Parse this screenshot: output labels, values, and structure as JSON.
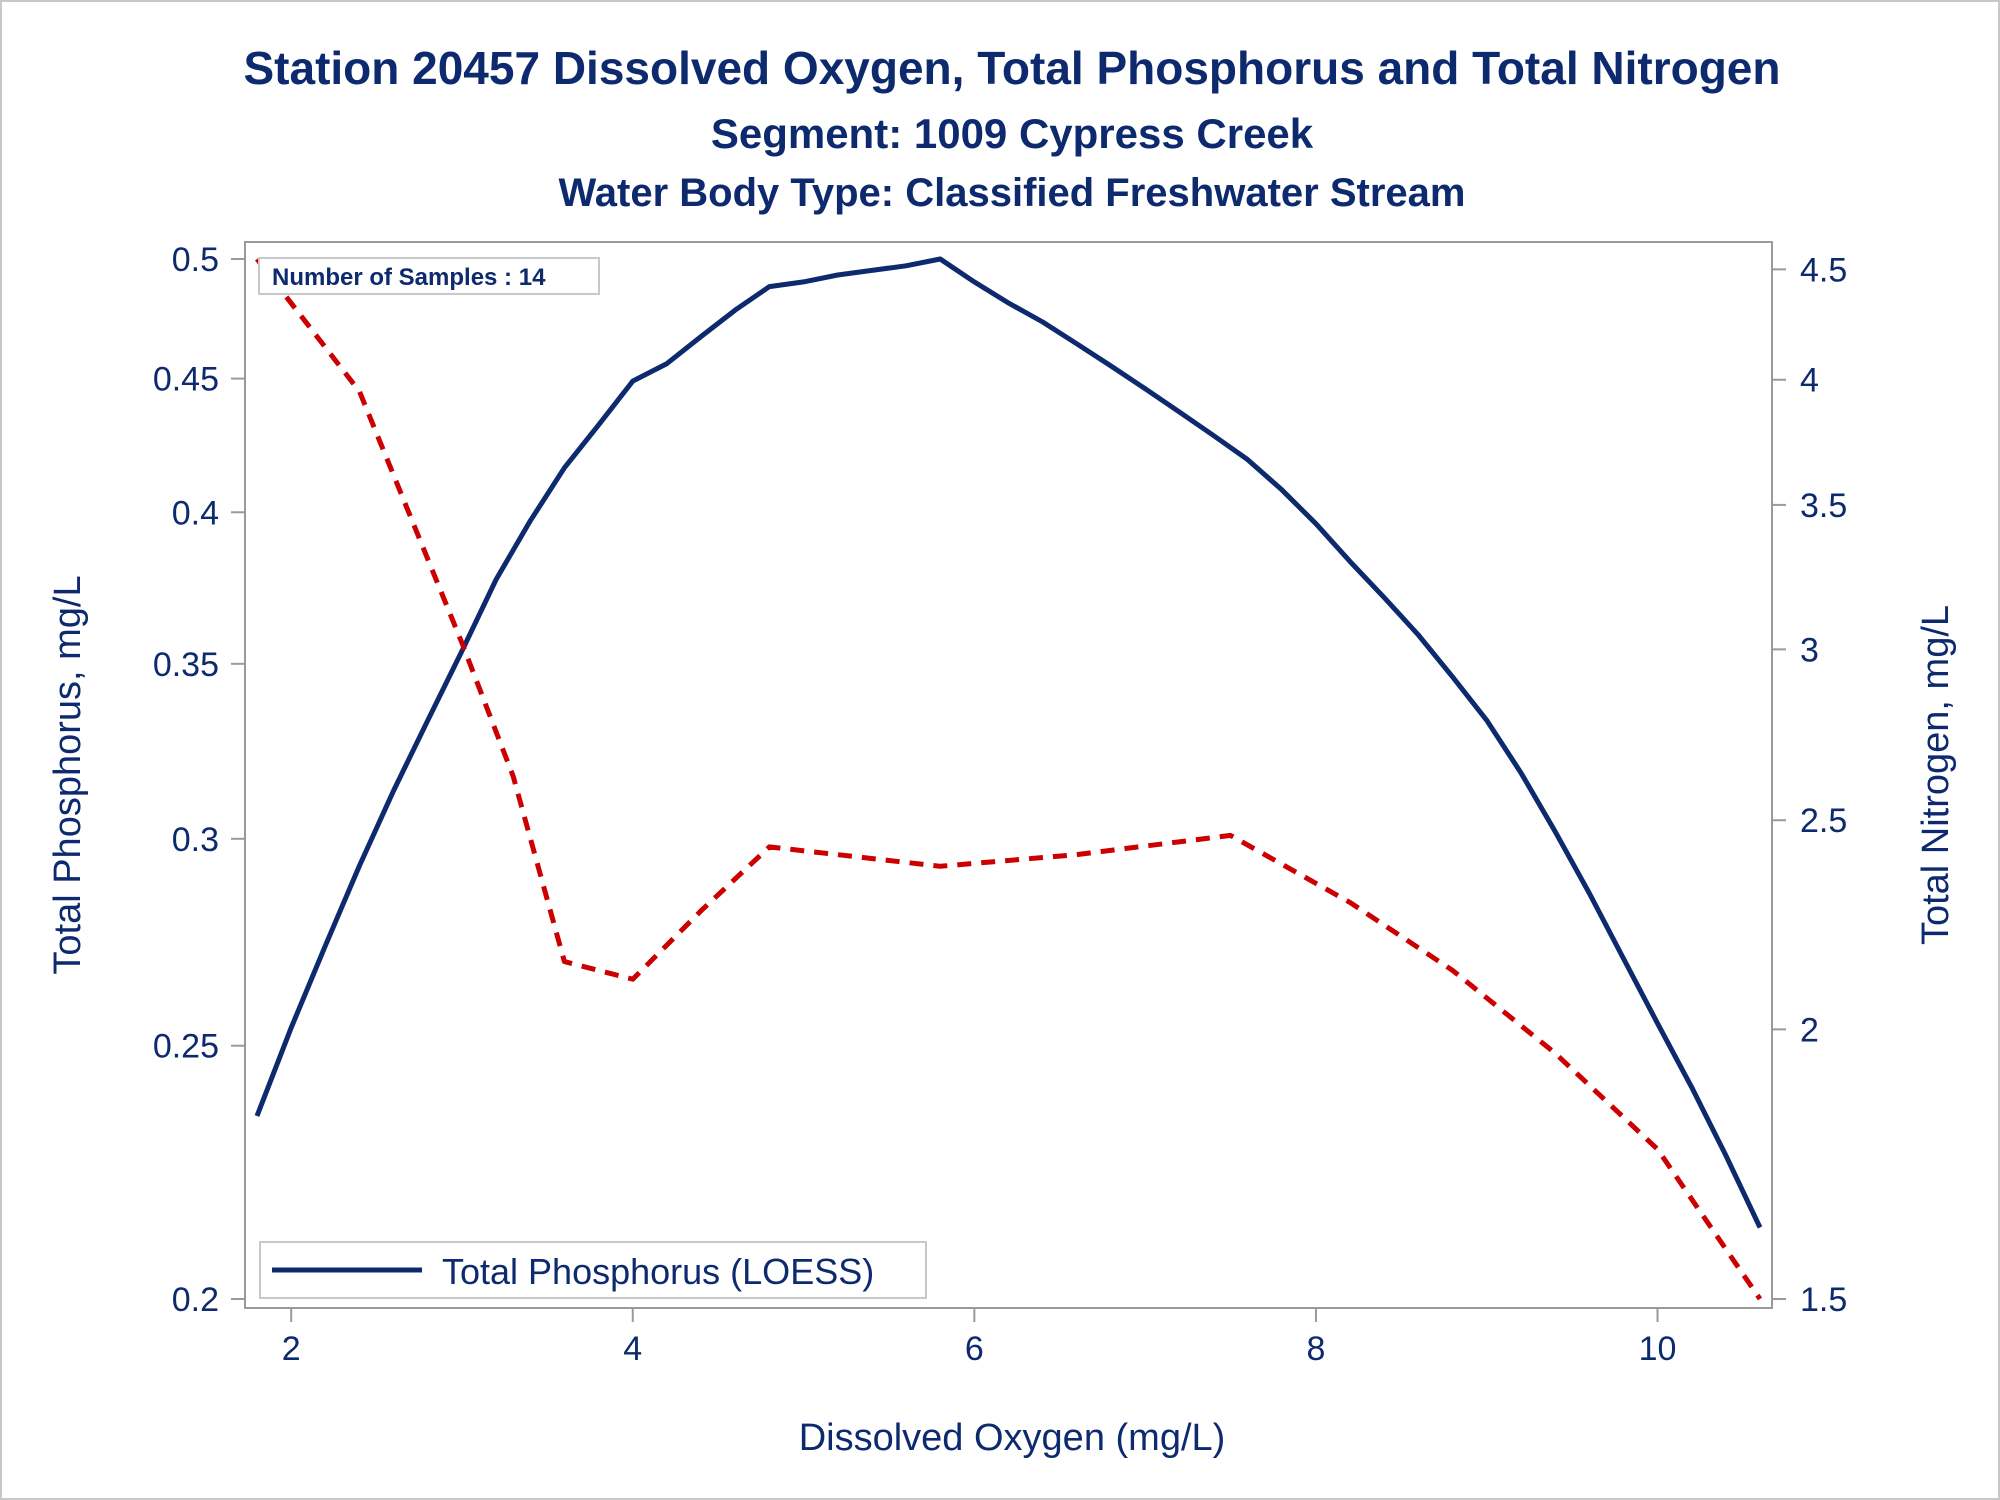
{
  "titles": {
    "line1": "Station 20457  Dissolved Oxygen, Total Phosphorus and Total Nitrogen",
    "line2": "Segment: 1009  Cypress Creek",
    "line3": "Water Body Type: Classified Freshwater Stream"
  },
  "colors": {
    "text": "#0d2a6e",
    "phosphorus": "#0d2a6e",
    "nitrogen": "#cc0000",
    "frame": "#9a9a9a"
  },
  "chart_data": {
    "type": "line",
    "xlabel": "Dissolved Oxygen (mg/L)",
    "ylabel": "Total Phosphorus, mg/L",
    "y2label": "Total Nitrogen, mg/L",
    "xlim": [
      1.8,
      10.6
    ],
    "ylim": [
      0.2,
      0.5
    ],
    "y2lim": [
      1.5,
      4.55
    ],
    "y_scale": "log",
    "y2_scale": "log",
    "xticks": [
      "2",
      "4",
      "6",
      "8",
      "10"
    ],
    "yticks": [
      "0.5",
      "0.45",
      "0.4",
      "0.35",
      "0.3",
      "0.25",
      "0.2"
    ],
    "y2ticks": [
      "4.5",
      "4",
      "3.5",
      "3",
      "2.5",
      "2",
      "1.5"
    ],
    "annotation": "Number of Samples : 14",
    "legend": {
      "placement": "bottom-left",
      "entries": [
        "Total Phosphorus (LOESS)"
      ]
    },
    "series": [
      {
        "name": "Total Phosphorus (LOESS)",
        "axis": "left",
        "style": "solid",
        "x": [
          1.8,
          2.0,
          2.2,
          2.4,
          2.6,
          2.8,
          3.0,
          3.2,
          3.4,
          3.6,
          3.8,
          4.0,
          4.2,
          4.4,
          4.6,
          4.8,
          5.0,
          5.2,
          5.4,
          5.6,
          5.8,
          6.0,
          6.2,
          6.4,
          6.6,
          6.8,
          7.0,
          7.2,
          7.4,
          7.6,
          7.8,
          8.0,
          8.2,
          8.4,
          8.6,
          8.8,
          9.0,
          9.2,
          9.4,
          9.6,
          9.8,
          10.0,
          10.2,
          10.4,
          10.6
        ],
        "y": [
          0.235,
          0.254,
          0.273,
          0.293,
          0.313,
          0.333,
          0.354,
          0.377,
          0.397,
          0.416,
          0.432,
          0.449,
          0.456,
          0.467,
          0.478,
          0.488,
          0.49,
          0.493,
          0.495,
          0.497,
          0.5,
          0.49,
          0.481,
          0.473,
          0.464,
          0.455,
          0.446,
          0.437,
          0.428,
          0.419,
          0.408,
          0.396,
          0.383,
          0.371,
          0.359,
          0.346,
          0.333,
          0.318,
          0.302,
          0.286,
          0.27,
          0.255,
          0.241,
          0.227,
          0.213
        ]
      },
      {
        "name": "Total Nitrogen",
        "axis": "right",
        "style": "dashed",
        "x": [
          1.8,
          2.4,
          3.0,
          3.3,
          3.6,
          4.0,
          4.4,
          4.8,
          5.8,
          6.6,
          7.5,
          8.2,
          8.8,
          9.4,
          10.0,
          10.6
        ],
        "y": [
          4.55,
          3.95,
          3.02,
          2.62,
          2.15,
          2.11,
          2.27,
          2.43,
          2.38,
          2.41,
          2.46,
          2.29,
          2.13,
          1.95,
          1.76,
          1.5
        ]
      }
    ]
  }
}
